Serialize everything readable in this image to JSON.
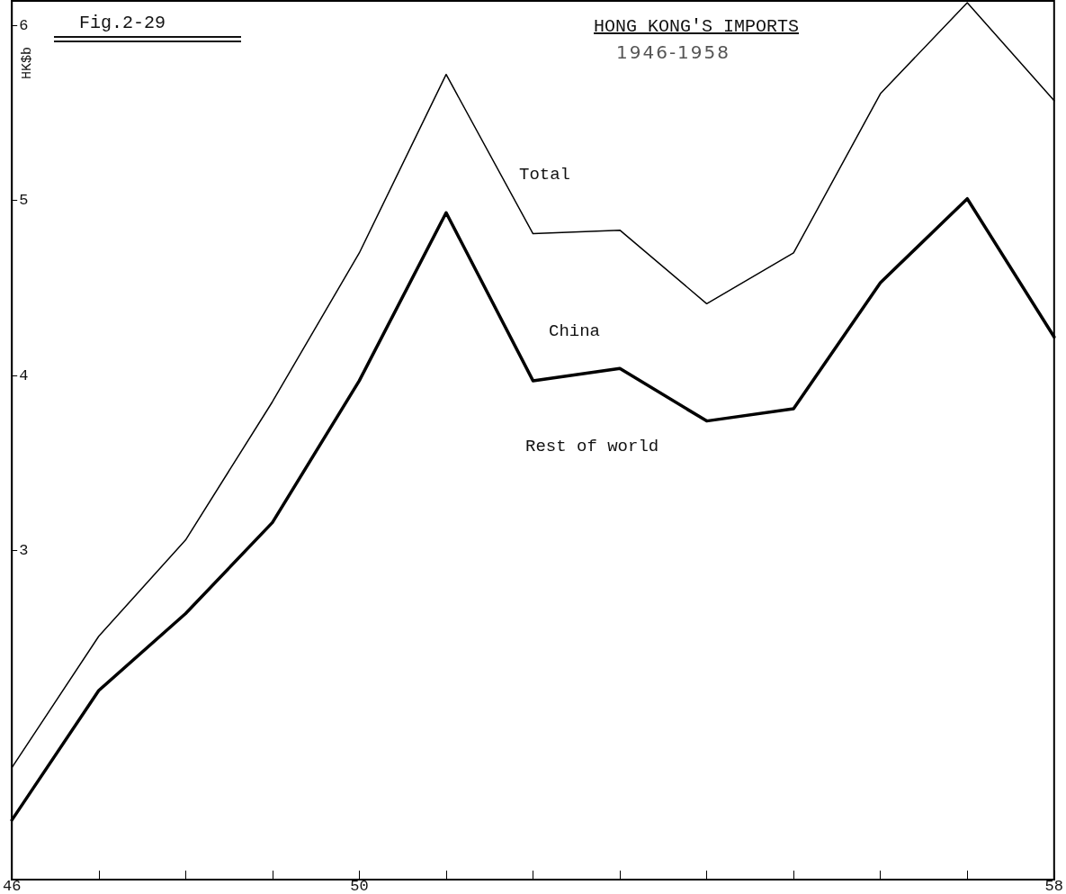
{
  "chart_data": {
    "type": "line",
    "title": "HONG KONG'S IMPORTS",
    "subtitle": "1946-1958",
    "ylabel": "HK$b",
    "x": [
      46,
      47,
      48,
      49,
      50,
      51,
      52,
      53,
      54,
      55,
      56,
      57,
      58
    ],
    "series": [
      {
        "color": "#000000",
        "values": [
          1.76,
          2.51,
          3.06,
          3.85,
          4.7,
          5.72,
          4.81,
          4.83,
          4.41,
          4.7,
          5.61,
          6.13,
          5.57
        ]
      },
      {
        "color": "#000000",
        "values": [
          1.46,
          2.2,
          2.64,
          3.16,
          3.97,
          4.93,
          3.97,
          4.04,
          3.74,
          3.81,
          4.53,
          5.01,
          4.22
        ]
      }
    ],
    "xlim": [
      46,
      58
    ],
    "xticks": [
      46,
      {
        "value": 47,
        "label": null
      },
      {
        "value": 48,
        "label": null
      },
      {
        "value": 49,
        "label": null
      },
      50,
      {
        "value": 51,
        "label": null
      },
      {
        "value": 52,
        "label": null
      },
      {
        "value": 53,
        "label": null
      },
      {
        "value": 54,
        "label": null
      },
      {
        "value": 55,
        "label": null
      },
      {
        "value": 56,
        "label": null
      },
      {
        "value": 57,
        "label": null
      },
      58
    ],
    "ylim": [
      1.12,
      6.14
    ],
    "yticks": [
      3,
      4,
      5,
      6
    ],
    "annotations": [
      "Fig.2-29",
      "Total",
      "China",
      "Rest of world"
    ],
    "grid": false,
    "marker": "none",
    "line_style": "solid"
  }
}
